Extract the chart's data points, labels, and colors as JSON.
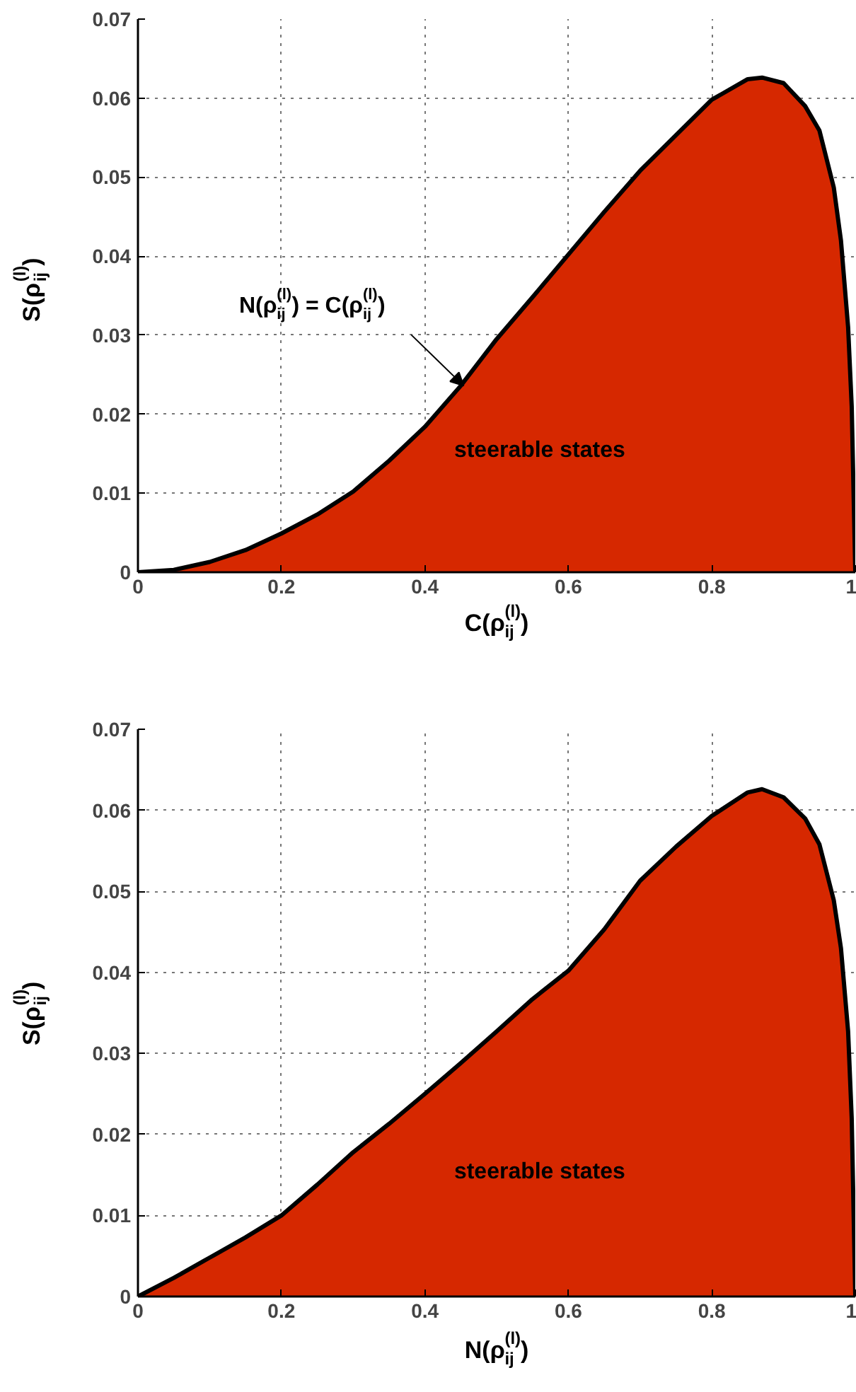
{
  "chart_data": [
    {
      "type": "area",
      "xlabel": "C(ρ$^{(l)}$$_{ij}$)",
      "ylabel": "S(ρ$^{(l)}$$_{ij}$)",
      "xlim": [
        0,
        1
      ],
      "ylim": [
        0,
        0.07
      ],
      "xticks": [
        0,
        0.2,
        0.4,
        0.6,
        0.8,
        1
      ],
      "yticks": [
        0,
        0.01,
        0.02,
        0.03,
        0.04,
        0.05,
        0.06,
        0.07
      ],
      "grid": true,
      "x": [
        0,
        0.05,
        0.1,
        0.15,
        0.2,
        0.25,
        0.3,
        0.35,
        0.4,
        0.45,
        0.5,
        0.55,
        0.6,
        0.65,
        0.7,
        0.75,
        0.8,
        0.85,
        0.87,
        0.9,
        0.93,
        0.95,
        0.97,
        0.98,
        0.99,
        0.995,
        1
      ],
      "series": [
        {
          "color": "#d62800",
          "values": [
            0,
            0.0003,
            0.0013,
            0.0028,
            0.0049,
            0.0073,
            0.0102,
            0.0141,
            0.0184,
            0.0236,
            0.0295,
            0.0348,
            0.0402,
            0.0456,
            0.0508,
            0.0553,
            0.0598,
            0.0624,
            0.0626,
            0.0619,
            0.059,
            0.0559,
            0.0487,
            0.042,
            0.031,
            0.021,
            0
          ]
        }
      ],
      "annotations": [
        {
          "text": "N(ρ$^{(l)}$$_{ij}$) = C(ρ$^{(l)}$$_{ij}$)",
          "x": 0.454,
          "y": 0.0236
        },
        "steerable states"
      ]
    },
    {
      "type": "area",
      "xlabel": "N(ρ$^{(l)}$$_{ij}$)",
      "ylabel": "S(ρ$^{(l)}$$_{ij}$)",
      "xlim": [
        0,
        1
      ],
      "ylim": [
        0,
        0.07
      ],
      "xticks": [
        0,
        0.2,
        0.4,
        0.6,
        0.8,
        1
      ],
      "yticks": [
        0,
        0.01,
        0.02,
        0.03,
        0.04,
        0.05,
        0.06,
        0.07
      ],
      "grid": true,
      "x": [
        0,
        0.05,
        0.1,
        0.15,
        0.2,
        0.25,
        0.3,
        0.35,
        0.4,
        0.45,
        0.5,
        0.55,
        0.6,
        0.65,
        0.7,
        0.75,
        0.8,
        0.85,
        0.87,
        0.9,
        0.93,
        0.95,
        0.97,
        0.98,
        0.99,
        0.995,
        1
      ],
      "series": [
        {
          "color": "#d62800",
          "values": [
            0,
            0.0023,
            0.0048,
            0.0073,
            0.01,
            0.0138,
            0.0178,
            0.0213,
            0.025,
            0.0288,
            0.0327,
            0.0367,
            0.0402,
            0.0453,
            0.0513,
            0.0555,
            0.0593,
            0.0622,
            0.0626,
            0.0616,
            0.059,
            0.0558,
            0.0489,
            0.043,
            0.0327,
            0.022,
            0
          ]
        }
      ],
      "annotations": [
        "steerable states"
      ]
    }
  ]
}
